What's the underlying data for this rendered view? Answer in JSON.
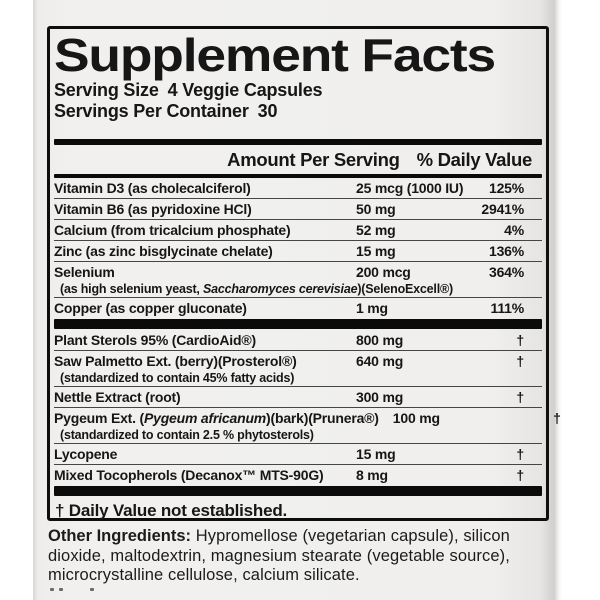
{
  "colors": {
    "ink": "#0e0e0e",
    "label_bg": "#f1f0ee",
    "page_bg": "#ffffff"
  },
  "label": {
    "title": "Supplement Facts",
    "serving_size_label": "Serving Size",
    "serving_size_value": "4 Veggie Capsules",
    "servings_per_container_label": "Servings Per Container",
    "servings_per_container_value": "30",
    "header": {
      "amount": "Amount Per Serving",
      "daily_value": "% Daily Value"
    },
    "rows": [
      {
        "name": "Vitamin D3 (as cholecalciferol)",
        "amount": "25 mcg (1000 IU)",
        "dv": "125%"
      },
      {
        "name": "Vitamin B6 (as pyridoxine HCl)",
        "amount": "50 mg",
        "dv": "2941%"
      },
      {
        "name": "Calcium (from tricalcium phosphate)",
        "amount": "52 mg",
        "dv": "4%"
      },
      {
        "name": "Zinc (as zinc bisglycinate chelate)",
        "amount": "15 mg",
        "dv": "136%"
      },
      {
        "name": "Selenium",
        "amount": "200 mcg",
        "dv": "364%",
        "sub_prefix": "(as high selenium yeast, ",
        "sub_italic": "Saccharomyces cerevisiae",
        "sub_suffix": ")(SelenoExcell®)"
      },
      {
        "name": "Copper (as copper gluconate)",
        "amount": "1 mg",
        "dv": "111%"
      },
      {
        "name": "Plant Sterols 95% (CardioAid®)",
        "amount": "800 mg",
        "dv": "†"
      },
      {
        "name": "Saw Palmetto Ext. (berry)(Prosterol®)",
        "amount": "640 mg",
        "dv": "†",
        "sub": "(standardized to contain 45% fatty acids)"
      },
      {
        "name": "Nettle Extract (root)",
        "amount": "300 mg",
        "dv": "†"
      },
      {
        "name_prefix": "Pygeum Ext. (",
        "name_italic": "Pygeum africanum",
        "name_suffix": ")(bark)(Prunera®)",
        "amount": "100 mg",
        "dv": "†",
        "sub": "(standardized to contain 2.5 % phytosterols)"
      },
      {
        "name": "Lycopene",
        "amount": "15 mg",
        "dv": "†"
      },
      {
        "name": "Mixed Tocopherols (Decanox™ MTS-90G)",
        "amount": "8 mg",
        "dv": "†"
      }
    ],
    "footnote": "† Daily Value not established.",
    "other_ingredients_label": "Other Ingredients:",
    "other_ingredients_text": " Hypromellose (vegetarian capsule), silicon dioxide, maltodextrin, magnesium stearate (vegetable source), microcrystalline cellulose, calcium silicate."
  }
}
